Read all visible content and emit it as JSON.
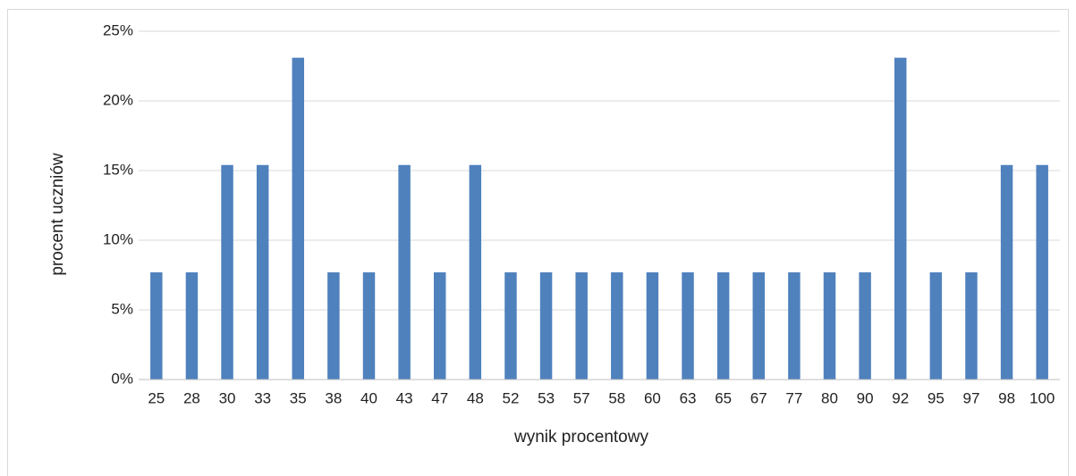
{
  "chart_data": {
    "type": "bar",
    "x_label": "wynik procentowy",
    "y_label": "procent uczniów",
    "categories": [
      "25",
      "28",
      "30",
      "33",
      "35",
      "38",
      "40",
      "43",
      "47",
      "48",
      "52",
      "53",
      "57",
      "58",
      "60",
      "63",
      "65",
      "67",
      "77",
      "80",
      "90",
      "92",
      "95",
      "97",
      "98",
      "100"
    ],
    "values": [
      7.7,
      7.7,
      15.4,
      15.4,
      23.1,
      7.7,
      7.7,
      15.4,
      7.7,
      15.4,
      7.7,
      7.7,
      7.7,
      7.7,
      7.7,
      7.7,
      7.7,
      7.7,
      7.7,
      7.7,
      7.7,
      23.1,
      7.7,
      7.7,
      15.4,
      15.4
    ],
    "color": "#4f81bd",
    "ylim": [
      0,
      25
    ],
    "yticks": [
      {
        "value": 0,
        "label": "0%"
      },
      {
        "value": 5,
        "label": "5%"
      },
      {
        "value": 10,
        "label": "10%"
      },
      {
        "value": 15,
        "label": "15%"
      },
      {
        "value": 20,
        "label": "20%"
      },
      {
        "value": 25,
        "label": "25%"
      }
    ],
    "grid": true
  }
}
